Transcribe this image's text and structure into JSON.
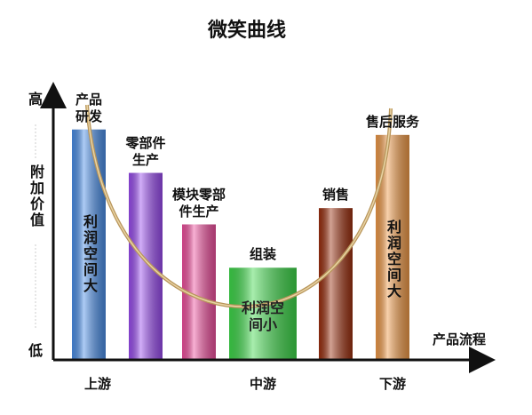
{
  "chart_data": {
    "type": "bar",
    "title": "微笑曲线",
    "categories": [
      "产品研发",
      "零部件生产",
      "模块零部件生产",
      "组装",
      "销售",
      "售后服务"
    ],
    "values": [
      85,
      69,
      50,
      34,
      56,
      83
    ],
    "colors": [
      "#4a8ee8",
      "#9a4cf0",
      "#f0509e",
      "#3ed84a",
      "#9c3010",
      "#f09a48"
    ],
    "inner_labels": [
      "利润空间大",
      null,
      null,
      "利润空间小",
      null,
      "利润空间大"
    ],
    "stages": [
      "上游",
      null,
      null,
      "中游",
      null,
      "下游"
    ],
    "ylim": [
      0,
      100
    ],
    "yticks": [
      {
        "value": 100,
        "label": "高"
      },
      {
        "value": 0,
        "label": "低"
      }
    ],
    "y_label": "附加价值",
    "x_label": "产品流程"
  }
}
